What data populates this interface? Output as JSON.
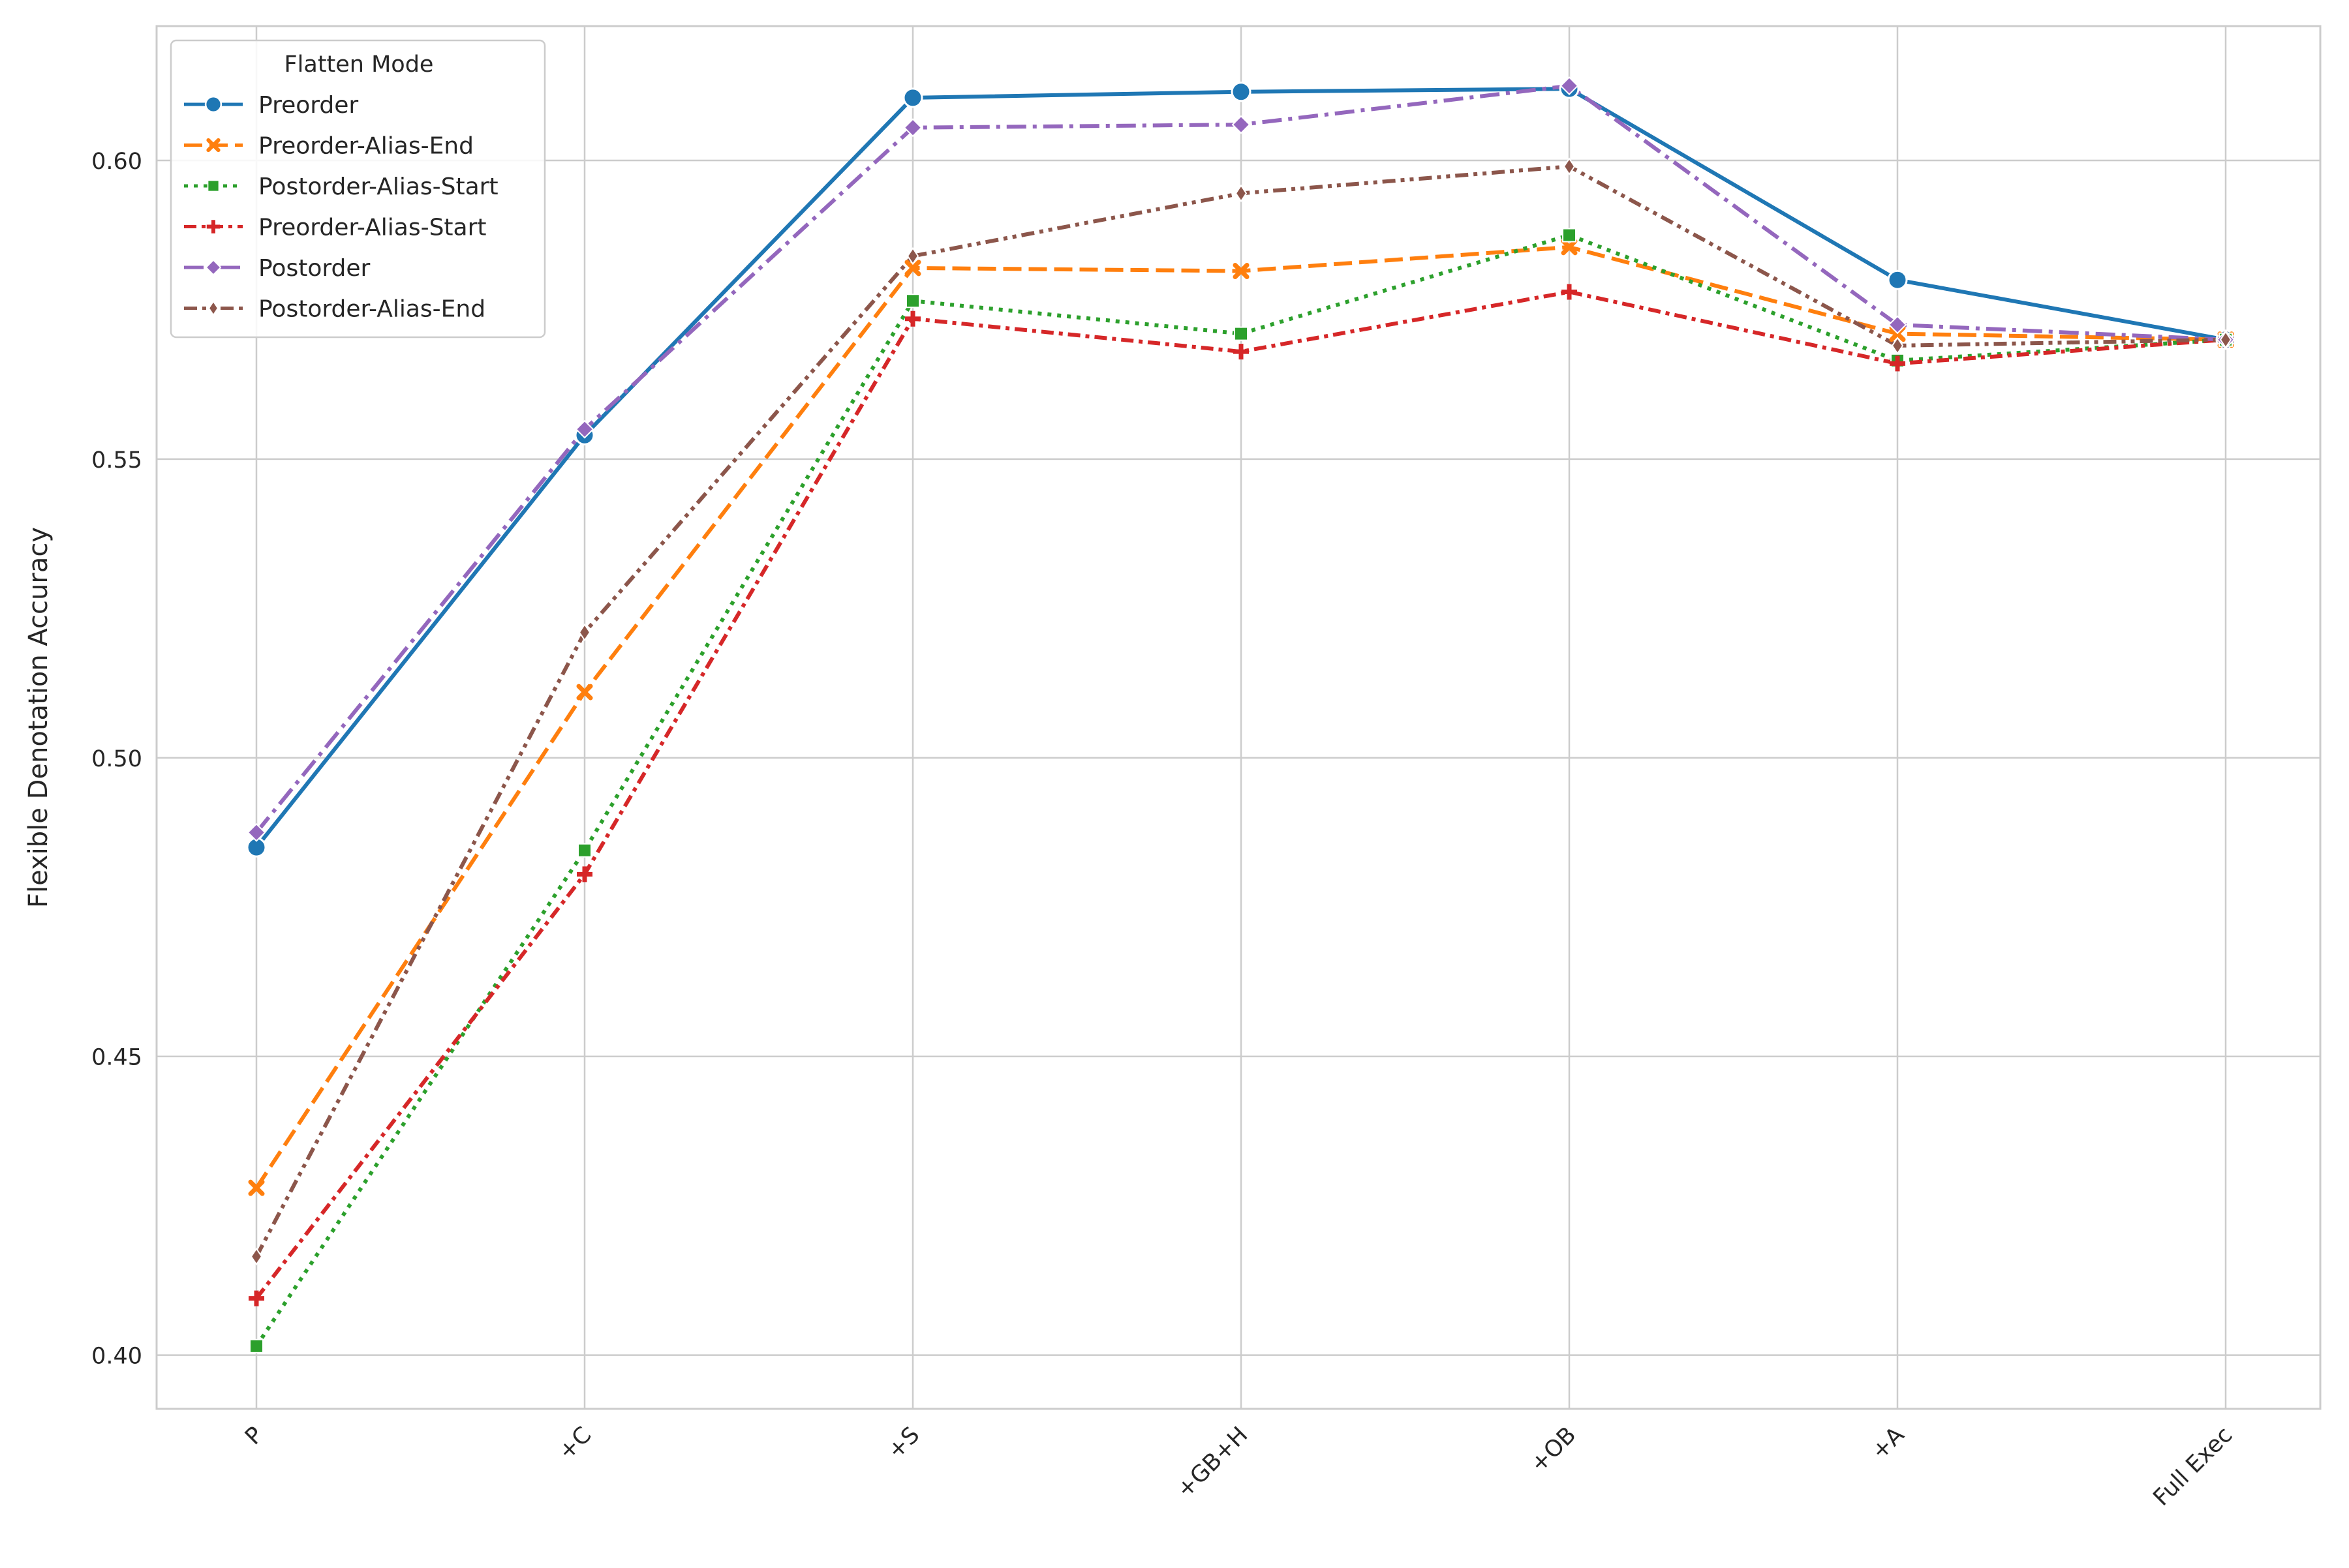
{
  "chart_data": {
    "type": "line",
    "title": "",
    "xlabel": "",
    "ylabel": "Flexible Denotation Accuracy",
    "categories": [
      "P",
      "+C",
      "+S",
      "+GB+H",
      "+OB",
      "+A",
      "Full Exec"
    ],
    "ylim": [
      0.391,
      0.6225
    ],
    "yticks": [
      0.4,
      0.45,
      0.5,
      0.55,
      0.6
    ],
    "ytick_labels": [
      "0.40",
      "0.45",
      "0.50",
      "0.55",
      "0.60"
    ],
    "grid": true,
    "legend": {
      "title": "Flatten Mode",
      "placement": "top-left"
    },
    "series": [
      {
        "name": "Preorder",
        "color": "#1f77b4",
        "dash": "solid",
        "marker": "circle",
        "values": [
          0.485,
          0.554,
          0.6105,
          0.6115,
          0.612,
          0.58,
          0.57
        ]
      },
      {
        "name": "Preorder-Alias-End",
        "color": "#ff7f0e",
        "dash": "dashed",
        "marker": "x",
        "values": [
          0.428,
          0.511,
          0.582,
          0.5815,
          0.5855,
          0.571,
          0.57
        ]
      },
      {
        "name": "Postorder-Alias-Start",
        "color": "#2ca02c",
        "dash": "dotted",
        "marker": "square",
        "values": [
          0.4015,
          0.4845,
          0.5765,
          0.571,
          0.5875,
          0.5665,
          0.57
        ]
      },
      {
        "name": "Preorder-Alias-Start",
        "color": "#d62728",
        "dash": "dashdot",
        "marker": "plus",
        "values": [
          0.4095,
          0.4805,
          0.5735,
          0.568,
          0.578,
          0.566,
          0.57
        ]
      },
      {
        "name": "Postorder",
        "color": "#9467bd",
        "dash": "dashdot-long",
        "marker": "diamond",
        "values": [
          0.4875,
          0.555,
          0.6055,
          0.606,
          0.6125,
          0.5725,
          0.57
        ]
      },
      {
        "name": "Postorder-Alias-End",
        "color": "#8c564b",
        "dash": "dashdotdot",
        "marker": "thin-diamond",
        "values": [
          0.4165,
          0.521,
          0.584,
          0.5945,
          0.599,
          0.569,
          0.57
        ]
      }
    ]
  }
}
